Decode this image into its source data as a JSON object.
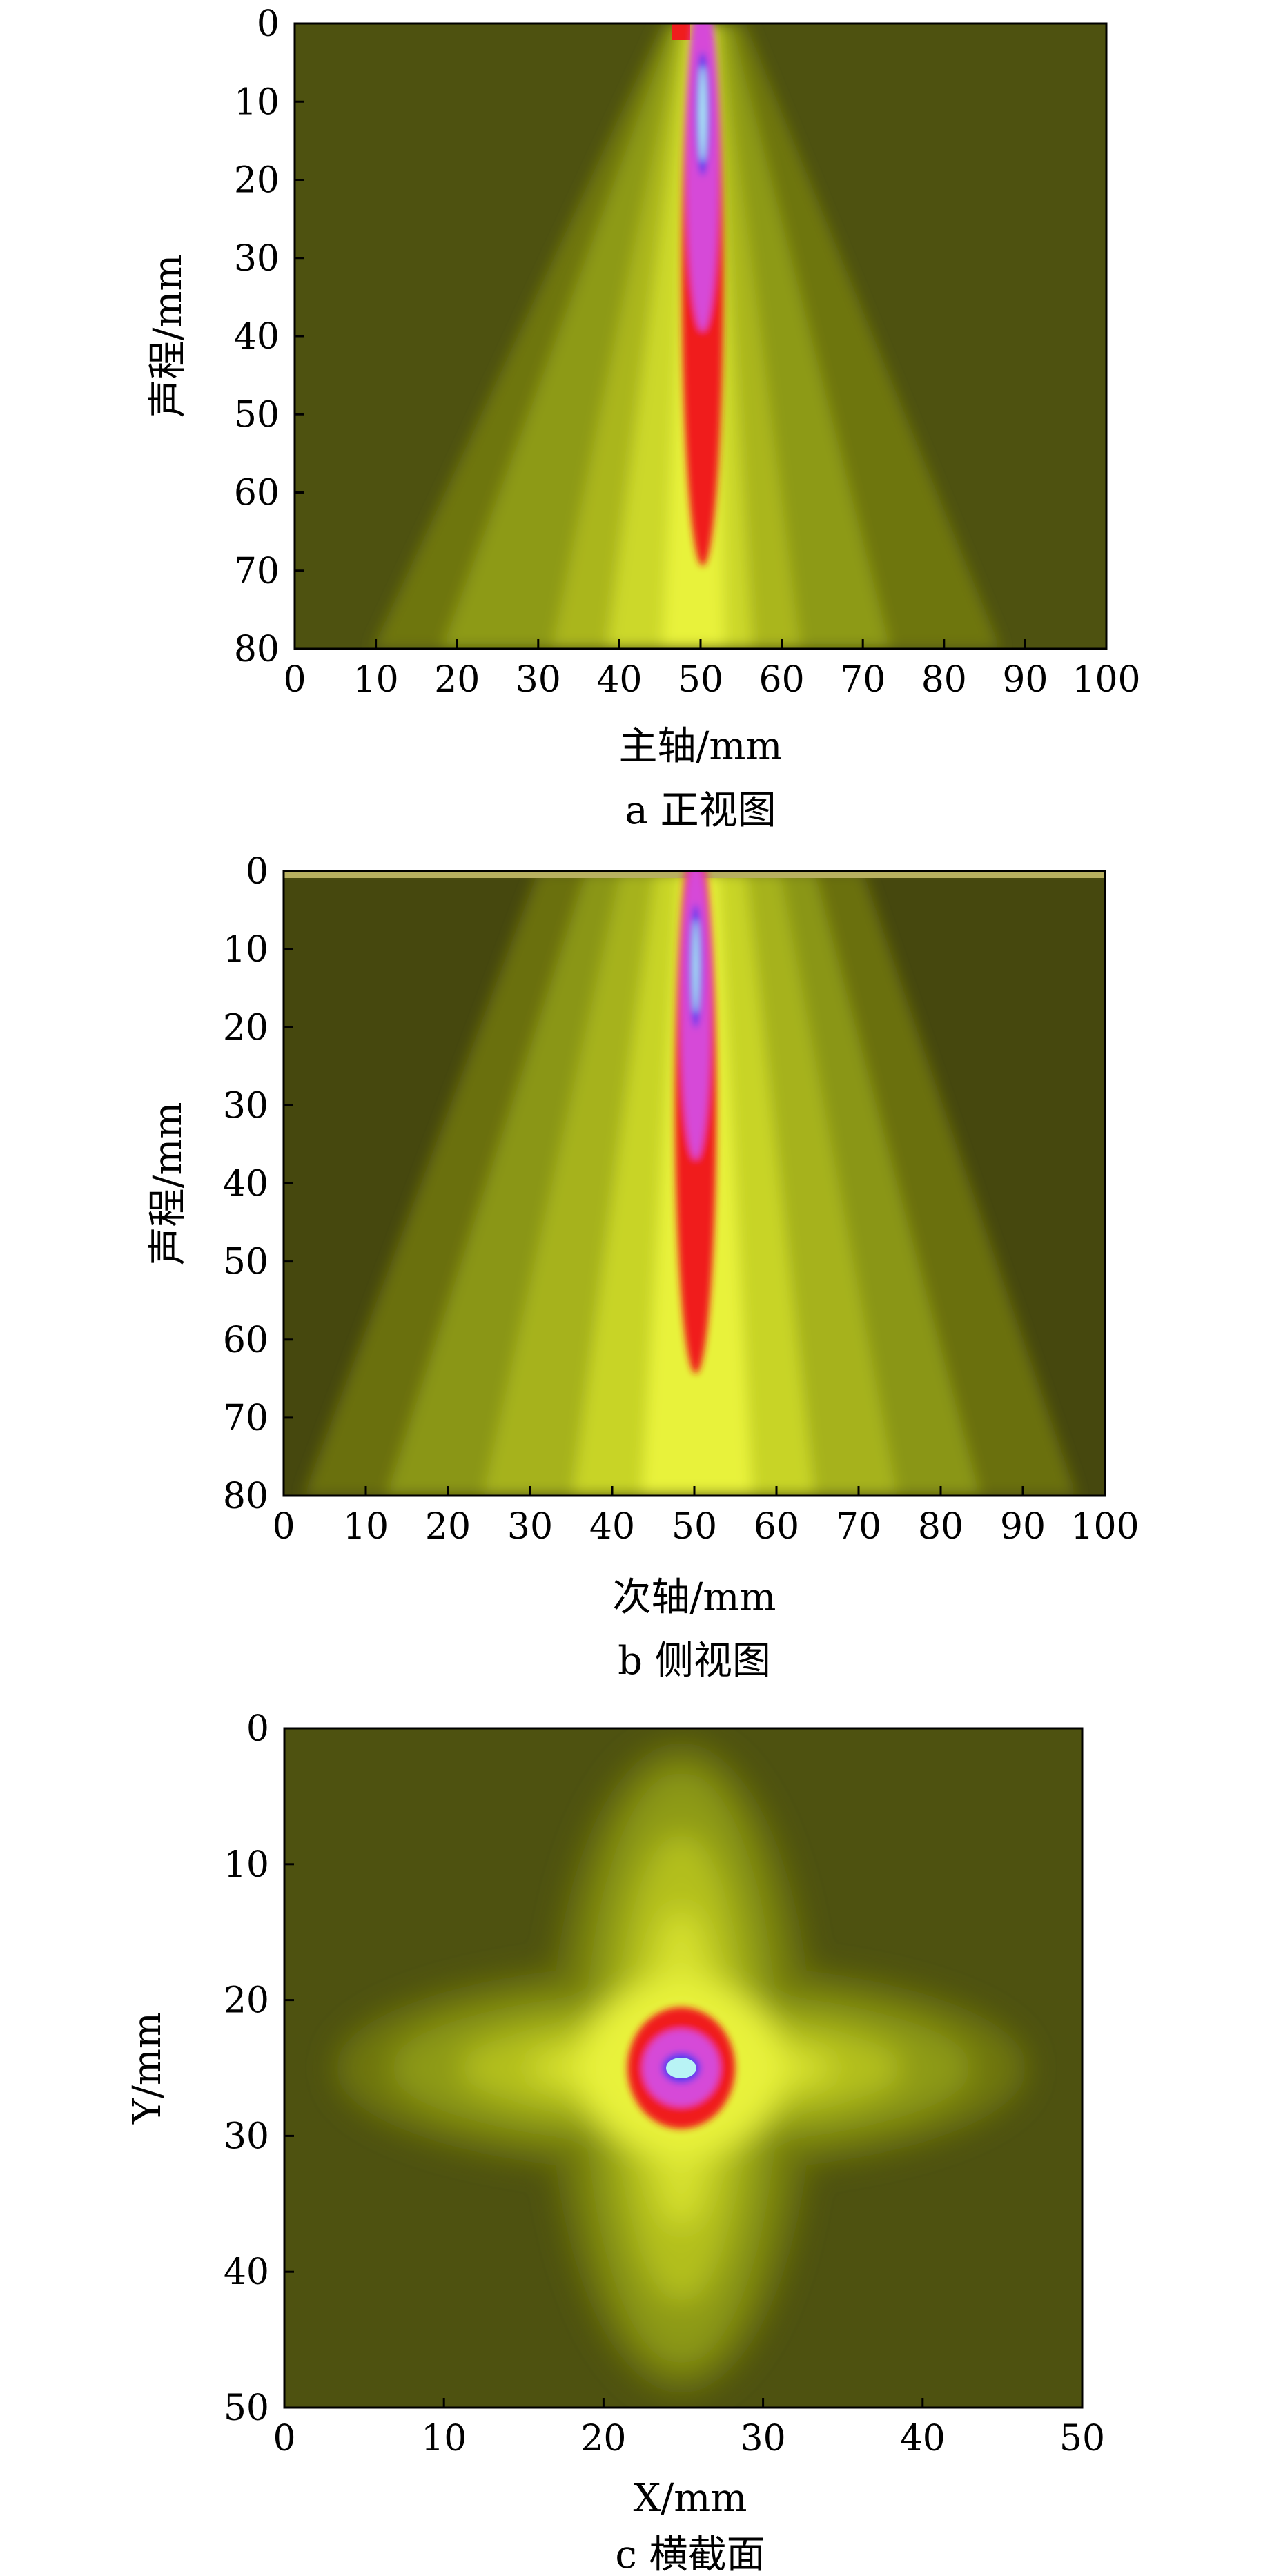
{
  "colors": {
    "background": "#4e5210",
    "field_mid": "#8d9a12",
    "field_bright": "#e8f23a",
    "core_red": "#f01d1d",
    "core_magenta": "#d64ad8",
    "core_blue": "#4a3cf0",
    "core_cyan": "#b8f3f5"
  },
  "chart_data": [
    {
      "type": "heatmap",
      "id": "a",
      "caption": "a  正视图",
      "xlabel": "主轴/mm",
      "ylabel": "声程/mm",
      "xlim": [
        0,
        100
      ],
      "ylim": [
        0,
        80
      ],
      "y_inverted": true,
      "x_ticks": [
        "0",
        "10",
        "20",
        "30",
        "40",
        "50",
        "60",
        "70",
        "80",
        "90",
        "100"
      ],
      "y_ticks": [
        "0",
        "10",
        "20",
        "30",
        "40",
        "50",
        "60",
        "70",
        "80"
      ],
      "beam_center_x": 50,
      "features": [
        {
          "region": "red",
          "x_range": [
            47.5,
            53
          ],
          "y_range": [
            0,
            75
          ]
        },
        {
          "region": "magenta",
          "x_range": [
            48,
            52
          ],
          "y_range": [
            1,
            44
          ]
        },
        {
          "region": "cyan",
          "x_range": [
            49.4,
            50.6
          ],
          "y_range": [
            7,
            21
          ]
        }
      ]
    },
    {
      "type": "heatmap",
      "id": "b",
      "caption": "b  侧视图",
      "xlabel": "次轴/mm",
      "ylabel": "声程/mm",
      "xlim": [
        0,
        100
      ],
      "ylim": [
        0,
        80
      ],
      "y_inverted": true,
      "x_ticks": [
        "0",
        "10",
        "20",
        "30",
        "40",
        "50",
        "60",
        "70",
        "80",
        "90",
        "100"
      ],
      "y_ticks": [
        "0",
        "10",
        "20",
        "30",
        "40",
        "50",
        "60",
        "70",
        "80"
      ],
      "beam_center_x": 50,
      "features": [
        {
          "region": "red",
          "x_range": [
            47.5,
            52.5
          ],
          "y_range": [
            0,
            72
          ]
        },
        {
          "region": "magenta",
          "x_range": [
            48,
            52
          ],
          "y_range": [
            2,
            44
          ]
        },
        {
          "region": "cyan",
          "x_range": [
            49.4,
            50.6
          ],
          "y_range": [
            8,
            22
          ]
        }
      ]
    },
    {
      "type": "heatmap",
      "id": "c",
      "caption": "c  横截面",
      "xlabel": "X/mm",
      "ylabel": "Y/mm",
      "xlim": [
        0,
        50
      ],
      "ylim": [
        0,
        50
      ],
      "y_inverted": true,
      "x_ticks": [
        "0",
        "10",
        "20",
        "30",
        "40",
        "50"
      ],
      "y_ticks": [
        "0",
        "10",
        "20",
        "30",
        "40",
        "50"
      ],
      "spot_center": [
        25,
        25
      ],
      "features": [
        {
          "region": "red",
          "radius_x": 3.3,
          "radius_y": 3.6
        },
        {
          "region": "magenta",
          "radius_x": 2.4,
          "radius_y": 2.4
        },
        {
          "region": "cyan",
          "radius_x": 1.0,
          "radius_y": 0.7
        }
      ]
    }
  ]
}
